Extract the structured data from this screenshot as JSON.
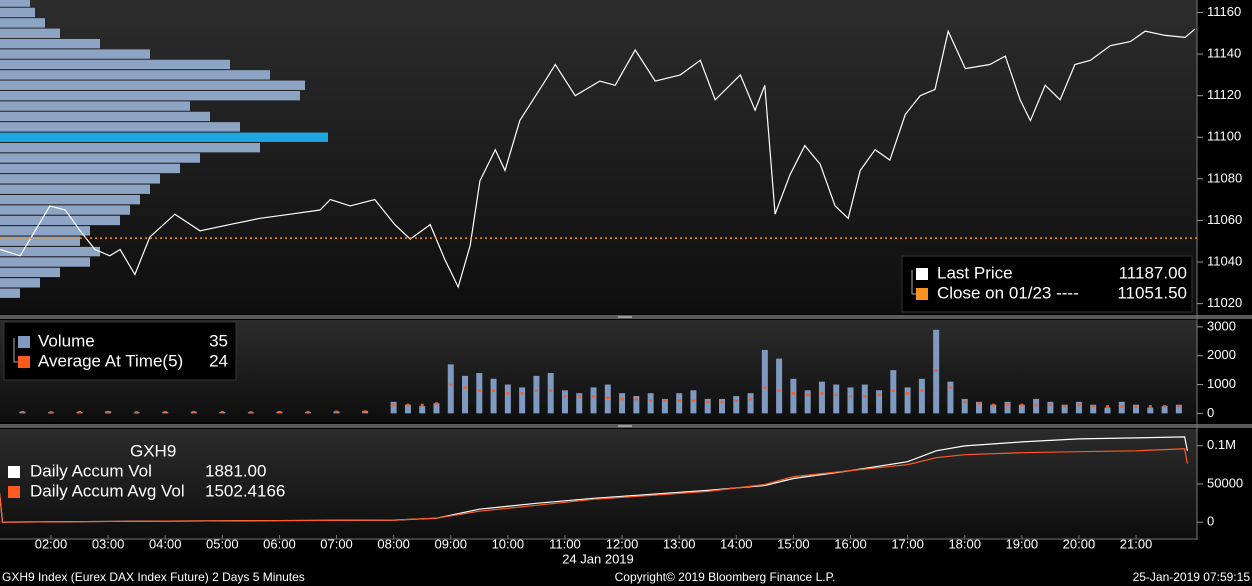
{
  "chart_data": [
    {
      "type": "line",
      "x": [
        1.11,
        1.46,
        1.98,
        2.25,
        2.51,
        2.77,
        3.03,
        3.21,
        3.47,
        3.73,
        4.17,
        4.61,
        5.13,
        5.66,
        6.19,
        6.71,
        6.89,
        7.24,
        7.67,
        8.02,
        8.29,
        8.64,
        8.9,
        9.13,
        9.34,
        9.51,
        9.78,
        9.95,
        10.21,
        10.65,
        10.83,
        11.18,
        11.61,
        11.88,
        12.23,
        12.58,
        13.02,
        13.37,
        13.63,
        14.07,
        14.33,
        14.5,
        14.68,
        14.94,
        15.2,
        15.47,
        15.73,
        15.96,
        16.17,
        16.43,
        16.69,
        16.96,
        17.22,
        17.48,
        17.71,
        18.01,
        18.44,
        18.71,
        18.97,
        19.15,
        19.41,
        19.67,
        19.93,
        20.2,
        20.55,
        20.9,
        21.16,
        21.51,
        21.86,
        22.03
      ],
      "series": [
        {
          "name": "Last Price",
          "color": "#ffffff",
          "legend_value": {
            "value": 11187,
            "label": "11187.00"
          },
          "values": [
            11046,
            11043,
            11067,
            11065,
            11055,
            11046,
            11043,
            11046,
            11034,
            11052,
            11063,
            11055,
            11058,
            11061,
            11063,
            11065,
            11070,
            11067,
            11070,
            11058,
            11051,
            11058,
            11041,
            11028,
            11048,
            11079,
            11094,
            11084,
            11108,
            11127,
            11135,
            11120,
            11127,
            11125,
            11142,
            11127,
            11130,
            11137,
            11118,
            11130,
            11113,
            11125,
            11063,
            11082,
            11096,
            11087,
            11067,
            11061,
            11084,
            11094,
            11089,
            11111,
            11120,
            11123,
            11151,
            11133,
            11135,
            11139,
            11118,
            11108,
            11125,
            11118,
            11135,
            11137,
            11144,
            11146,
            11151,
            11149,
            11148,
            11152
          ]
        },
        {
          "name": "Close on 01/23 ----",
          "color": "#f7931e",
          "style": "level",
          "legend_value": {
            "value": 11051.5,
            "label": "11051.50"
          }
        }
      ],
      "profile": {
        "color": "#8da4c4",
        "highlight_color": "#1ca7e0",
        "prices": [
          11165,
          11160,
          11155,
          11150,
          11145,
          11140,
          11135,
          11130,
          11125,
          11120,
          11115,
          11110,
          11105,
          11100,
          11095,
          11090,
          11085,
          11080,
          11075,
          11070,
          11065,
          11060,
          11055,
          11050,
          11045,
          11040,
          11035,
          11030,
          11025
        ],
        "values": [
          30,
          35,
          45,
          60,
          100,
          150,
          230,
          270,
          305,
          300,
          190,
          210,
          240,
          328,
          260,
          200,
          180,
          160,
          150,
          140,
          130,
          120,
          90,
          80,
          100,
          90,
          60,
          40,
          20
        ]
      },
      "ylim": [
        11015,
        11166
      ],
      "yticks": [
        11020,
        11040,
        11060,
        11080,
        11100,
        11120,
        11140,
        11160
      ]
    },
    {
      "type": "bar",
      "x": [
        1.5,
        2,
        2.5,
        3,
        3.5,
        4,
        4.5,
        5,
        5.5,
        6,
        6.5,
        7,
        7.5,
        8,
        8.25,
        8.5,
        8.75,
        9,
        9.25,
        9.5,
        9.75,
        10,
        10.25,
        10.5,
        10.75,
        11,
        11.25,
        11.5,
        11.75,
        12,
        12.25,
        12.5,
        12.75,
        13,
        13.25,
        13.5,
        13.75,
        14,
        14.25,
        14.5,
        14.75,
        15,
        15.25,
        15.5,
        15.75,
        16,
        16.25,
        16.5,
        16.75,
        17,
        17.25,
        17.5,
        17.75,
        18,
        18.25,
        18.5,
        18.75,
        19,
        19.25,
        19.5,
        19.75,
        20,
        20.25,
        20.5,
        20.75,
        21,
        21.25,
        21.5,
        21.75
      ],
      "series": [
        {
          "name": "Volume",
          "color": "#7f9ac0",
          "legend_value": 35,
          "values": [
            60,
            40,
            50,
            70,
            40,
            50,
            60,
            50,
            40,
            60,
            50,
            70,
            80,
            400,
            300,
            250,
            350,
            1700,
            1300,
            1400,
            1200,
            1000,
            900,
            1300,
            1400,
            800,
            700,
            900,
            1000,
            700,
            600,
            700,
            500,
            700,
            800,
            500,
            500,
            600,
            700,
            2200,
            1900,
            1200,
            800,
            1100,
            1000,
            900,
            1000,
            800,
            1500,
            900,
            1200,
            2900,
            1100,
            500,
            400,
            300,
            400,
            300,
            500,
            400,
            300,
            400,
            300,
            200,
            400,
            300,
            200,
            250,
            300
          ]
        },
        {
          "name": "Average At Time(5)",
          "color": "#ff5a1f",
          "style": "dots",
          "legend_value": 24,
          "values": [
            50,
            40,
            50,
            50,
            40,
            50,
            50,
            50,
            40,
            50,
            50,
            60,
            70,
            300,
            300,
            300,
            350,
            1000,
            900,
            800,
            800,
            700,
            700,
            800,
            800,
            600,
            600,
            600,
            550,
            500,
            500,
            450,
            450,
            450,
            450,
            400,
            400,
            450,
            500,
            900,
            800,
            700,
            650,
            700,
            650,
            600,
            600,
            650,
            800,
            700,
            800,
            1500,
            900,
            400,
            350,
            300,
            300,
            300,
            300,
            300,
            250,
            300,
            250,
            250,
            250,
            250,
            250,
            250,
            250
          ]
        }
      ],
      "ylim": [
        -300,
        3240
      ],
      "yticks": [
        0,
        1000,
        2000,
        3000
      ]
    },
    {
      "type": "line",
      "title": "GXH9",
      "x": [
        1.1,
        1.15,
        4,
        8,
        8.75,
        9.5,
        10.5,
        11.5,
        12.5,
        13.5,
        14.5,
        15,
        16,
        17,
        17.5,
        18,
        19,
        20,
        21,
        21.85,
        21.9
      ],
      "series": [
        {
          "name": "Daily Accum Vol",
          "color": "#ffffff",
          "legend_value": {
            "value": 1881,
            "label": "1881.00"
          },
          "values": [
            37600,
            0,
            1300,
            2600,
            5200,
            16900,
            24700,
            31200,
            36300,
            41500,
            48000,
            57100,
            67500,
            79200,
            93500,
            99900,
            105100,
            109000,
            110300,
            111600,
            93500
          ]
        },
        {
          "name": "Daily Accum Avg Vol",
          "color": "#ff5a1f",
          "legend_value": 1502.4166,
          "values": [
            37600,
            0,
            1300,
            2600,
            5200,
            14300,
            22100,
            29900,
            35000,
            40200,
            49300,
            59700,
            67500,
            75300,
            84400,
            88300,
            90900,
            92200,
            93500,
            96100,
            76600
          ]
        }
      ],
      "ylim": [
        -20800,
        122000
      ],
      "yticks": [
        0,
        50000,
        {
          "value": 100000,
          "label": "0.1M"
        }
      ]
    }
  ],
  "x_axis": {
    "xlim": [
      1.107,
      22.05
    ],
    "xticks": [
      {
        "value": 2,
        "label": "02:00"
      },
      {
        "value": 3,
        "label": "03:00"
      },
      {
        "value": 4,
        "label": "04:00"
      },
      {
        "value": 5,
        "label": "05:00"
      },
      {
        "value": 6,
        "label": "06:00"
      },
      {
        "value": 7,
        "label": "07:00"
      },
      {
        "value": 8,
        "label": "08:00"
      },
      {
        "value": 9,
        "label": "09:00"
      },
      {
        "value": 10,
        "label": "10:00"
      },
      {
        "value": 11,
        "label": "11:00"
      },
      {
        "value": 12,
        "label": "12:00"
      },
      {
        "value": 13,
        "label": "13:00"
      },
      {
        "value": 14,
        "label": "14:00"
      },
      {
        "value": 15,
        "label": "15:00"
      },
      {
        "value": 16,
        "label": "16:00"
      },
      {
        "value": 17,
        "label": "17:00"
      },
      {
        "value": 18,
        "label": "18:00"
      },
      {
        "value": 19,
        "label": "19:00"
      },
      {
        "value": 20,
        "label": "20:00"
      },
      {
        "value": 21,
        "label": "21:00"
      }
    ],
    "date_label": "24 Jan 2019"
  },
  "footer": {
    "left": "GXH9 Index (Eurex DAX Index Future) 2 Days 5 Minutes",
    "center": "Copyright© 2019 Bloomberg Finance L.P.",
    "right": "25-Jan-2019 07:59:15"
  }
}
